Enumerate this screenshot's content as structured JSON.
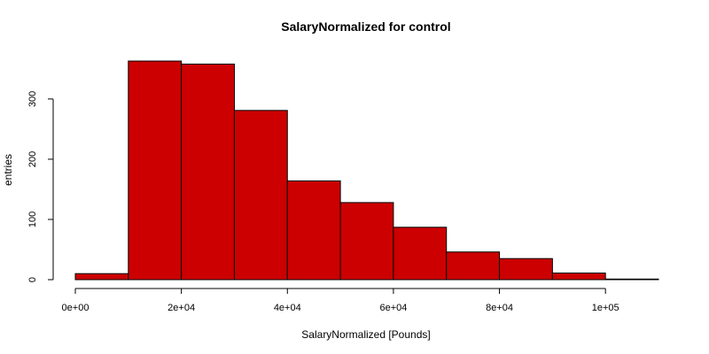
{
  "chart_data": {
    "type": "histogram",
    "title": "SalaryNormalized for control",
    "xlabel": "SalaryNormalized [Pounds]",
    "ylabel": "entries",
    "bin_edges": [
      0,
      10000,
      20000,
      30000,
      40000,
      50000,
      60000,
      70000,
      80000,
      90000,
      100000,
      110000
    ],
    "counts": [
      10,
      363,
      358,
      281,
      164,
      128,
      87,
      46,
      35,
      11,
      1
    ],
    "xlim": [
      0,
      110000
    ],
    "ylim": [
      0,
      363
    ],
    "x_ticks": [
      0,
      20000,
      40000,
      60000,
      80000,
      100000
    ],
    "x_tick_labels": [
      "0e+00",
      "2e+04",
      "4e+04",
      "6e+04",
      "8e+04",
      "1e+05"
    ],
    "y_ticks": [
      0,
      100,
      200,
      300
    ],
    "y_tick_labels": [
      "0",
      "100",
      "200",
      "300"
    ],
    "bar_color": "#cc0000",
    "grid": false,
    "legend": "none"
  }
}
